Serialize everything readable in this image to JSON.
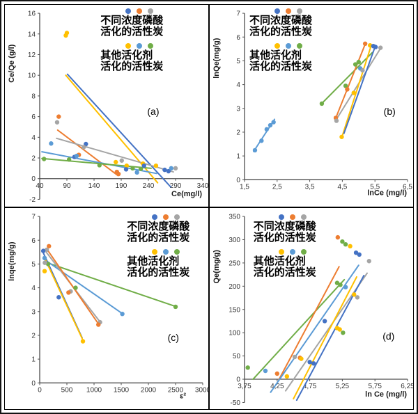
{
  "figure": {
    "description": "2x2 grid of adsorption isotherm scatter plots comparing activated carbons"
  },
  "colors": {
    "blue": "#4472C4",
    "orange": "#ED7D31",
    "gray": "#A5A5A5",
    "yellow": "#FFC000",
    "lightblue": "#5B9BD5",
    "green": "#70AD47"
  },
  "axis_style": {
    "axis_color": "#4d4d4d",
    "tick_text_color": "#333333",
    "label_color": "#1a1a1a"
  },
  "legend": {
    "row1": {
      "dots": [
        "blue",
        "orange",
        "gray"
      ],
      "lines": [
        "不同浓度磷酸",
        "活化的活性炭"
      ]
    },
    "row2": {
      "dots": [
        "yellow",
        "lightblue",
        "green"
      ],
      "lines": [
        "其他活化剂",
        "活化的活性炭"
      ]
    }
  },
  "chart_data": [
    {
      "id": "a",
      "type": "scatter",
      "annotation": "(a)",
      "annotation_pos": [
        0.7,
        0.5
      ],
      "xlabel": "Ce(mg/l)",
      "ylabel": "Ce/Qe (g/l)",
      "xlim": [
        40,
        340
      ],
      "ylim": [
        -2,
        16
      ],
      "grid": false,
      "legend_pos": [
        0.47,
        0.015
      ],
      "xticks": [
        {
          "v": 40,
          "l": "40"
        },
        {
          "v": 90,
          "l": "90"
        },
        {
          "v": 140,
          "l": "140"
        },
        {
          "v": 190,
          "l": "190"
        },
        {
          "v": 240,
          "l": "240"
        },
        {
          "v": 290,
          "l": "290"
        },
        {
          "v": 340,
          "l": "340"
        }
      ],
      "yticks": [
        {
          "v": -2,
          "l": "-2"
        },
        {
          "v": 0,
          "l": "0"
        },
        {
          "v": 2,
          "l": "2"
        },
        {
          "v": 4,
          "l": "4"
        },
        {
          "v": 6,
          "l": "6"
        },
        {
          "v": 8,
          "l": "8"
        },
        {
          "v": 10,
          "l": "10"
        },
        {
          "v": 12,
          "l": "12"
        },
        {
          "v": 14,
          "l": "14"
        },
        {
          "v": 16,
          "l": "16"
        }
      ],
      "series": [
        {
          "color": "yellow",
          "line": [
            [
              88,
              10.0
            ],
            [
              257,
              -0.4
            ]
          ],
          "points": [
            [
              88,
              13.85
            ],
            [
              90,
              14.1
            ],
            [
              180,
              1.6
            ],
            [
              200,
              1.25
            ],
            [
              230,
              1.45
            ],
            [
              254,
              1.25
            ]
          ]
        },
        {
          "color": "blue",
          "line": [
            [
              91,
              10.1
            ],
            [
              281,
              -0.8
            ]
          ],
          "points": [
            [
              125,
              3.35
            ],
            [
              104,
              2.1
            ],
            [
              199,
              0.9
            ],
            [
              232,
              1.25
            ],
            [
              270,
              0.85
            ],
            [
              277,
              0.72
            ]
          ]
        },
        {
          "color": "orange",
          "line": [
            [
              73,
              4.7
            ],
            [
              184,
              0.3
            ]
          ],
          "points": [
            [
              75,
              6.0
            ],
            [
              112,
              2.3
            ],
            [
              182,
              0.65
            ],
            [
              185,
              0.45
            ]
          ]
        },
        {
          "color": "gray",
          "line": [
            [
              71,
              3.9
            ],
            [
              286,
              0.65
            ]
          ],
          "points": [
            [
              72,
              5.45
            ],
            [
              121,
              3.05
            ],
            [
              191,
              1.75
            ],
            [
              290,
              1.0
            ]
          ]
        },
        {
          "color": "lightblue",
          "line": [
            [
              44,
              2.6
            ],
            [
              255,
              0.5
            ]
          ],
          "points": [
            [
              61,
              3.4
            ],
            [
              108,
              2.2
            ],
            [
              219,
              0.6
            ],
            [
              282,
              1.0
            ]
          ]
        },
        {
          "color": "green",
          "line": [
            [
              44,
              1.95
            ],
            [
              245,
              1.0
            ]
          ],
          "points": [
            [
              48,
              1.9
            ],
            [
              94,
              1.85
            ],
            [
              150,
              1.3
            ],
            [
              211,
              1.0
            ],
            [
              226,
              0.95
            ]
          ]
        }
      ]
    },
    {
      "id": "b",
      "type": "scatter",
      "annotation": "(b)",
      "annotation_pos": [
        0.855,
        0.5
      ],
      "xlabel": "lnCe (mg/l)",
      "ylabel": "lnQe(mg/g)",
      "xlim": [
        1.5,
        6.5
      ],
      "ylim": [
        0,
        7
      ],
      "grid": false,
      "legend_pos": [
        0.195,
        0.015
      ],
      "xticks": [
        {
          "v": 1.5,
          "l": "1,5"
        },
        {
          "v": 2.5,
          "l": "2,5"
        },
        {
          "v": 3.5,
          "l": "3,5"
        },
        {
          "v": 4.5,
          "l": "4,5"
        },
        {
          "v": 5.5,
          "l": "5,5"
        },
        {
          "v": 6.5,
          "l": "6,5"
        }
      ],
      "yticks": [
        {
          "v": 0,
          "l": "0"
        },
        {
          "v": 1,
          "l": "1"
        },
        {
          "v": 2,
          "l": "2"
        },
        {
          "v": 3,
          "l": "3"
        },
        {
          "v": 4,
          "l": "4"
        },
        {
          "v": 5,
          "l": "5"
        },
        {
          "v": 6,
          "l": "6"
        },
        {
          "v": 7,
          "l": "7"
        }
      ],
      "series": [
        {
          "color": "lightblue",
          "line": [
            [
              1.78,
              1.19
            ],
            [
              2.42,
              2.54
            ]
          ],
          "points": [
            [
              1.82,
              1.24
            ],
            [
              2.02,
              1.64
            ],
            [
              2.18,
              2.12
            ],
            [
              2.29,
              2.29
            ],
            [
              2.39,
              2.42
            ],
            [
              5.05,
              4.68
            ]
          ]
        },
        {
          "color": "green",
          "line": [
            [
              3.85,
              3.18
            ],
            [
              5.42,
              5.35
            ]
          ],
          "points": [
            [
              3.87,
              3.2
            ],
            [
              4.6,
              3.95
            ],
            [
              4.9,
              4.85
            ],
            [
              5.0,
              4.95
            ]
          ]
        },
        {
          "color": "orange",
          "line": [
            [
              4.3,
              2.6
            ],
            [
              5.2,
              5.7
            ]
          ],
          "points": [
            [
              4.3,
              2.6
            ],
            [
              4.65,
              3.8
            ],
            [
              5.2,
              5.72
            ]
          ]
        },
        {
          "color": "gray",
          "line": [
            [
              4.3,
              2.5
            ],
            [
              5.67,
              5.52
            ]
          ],
          "points": [
            [
              4.32,
              2.48
            ],
            [
              5.12,
              4.6
            ],
            [
              5.67,
              5.55
            ]
          ]
        },
        {
          "color": "yellow",
          "line": [
            [
              4.5,
              1.85
            ],
            [
              5.38,
              5.62
            ]
          ],
          "points": [
            [
              4.48,
              1.8
            ],
            [
              4.85,
              3.65
            ],
            [
              5.35,
              5.65
            ]
          ]
        },
        {
          "color": "blue",
          "line": [
            [
              4.55,
              1.95
            ],
            [
              5.52,
              5.65
            ]
          ],
          "points": [
            [
              5.45,
              5.62
            ],
            [
              5.52,
              5.58
            ]
          ]
        }
      ]
    },
    {
      "id": "c",
      "type": "scatter",
      "annotation": "(c)",
      "annotation_pos": [
        0.8,
        0.615
      ],
      "xlabel": "ε²",
      "ylabel": "lnqe(mg/g)",
      "xlim": [
        0,
        3000
      ],
      "ylim": [
        0,
        7
      ],
      "grid": false,
      "legend_pos": [
        0.6,
        0.03
      ],
      "xticks": [
        {
          "v": 0,
          "l": "0"
        },
        {
          "v": 500,
          "l": "500"
        },
        {
          "v": 1000,
          "l": "1000"
        },
        {
          "v": 1500,
          "l": "1500"
        },
        {
          "v": 2000,
          "l": "2000"
        },
        {
          "v": 2500,
          "l": "2500"
        },
        {
          "v": 3000,
          "l": "3000"
        }
      ],
      "yticks": [
        {
          "v": 0,
          "l": "0"
        },
        {
          "v": 1,
          "l": "1"
        },
        {
          "v": 2,
          "l": "2"
        },
        {
          "v": 3,
          "l": "3"
        },
        {
          "v": 4,
          "l": "4"
        },
        {
          "v": 5,
          "l": "5"
        },
        {
          "v": 6,
          "l": "6"
        },
        {
          "v": 7,
          "l": "7"
        }
      ],
      "series": [
        {
          "color": "green",
          "line": [
            [
              140,
              5.05
            ],
            [
              2520,
              3.2
            ]
          ],
          "points": [
            [
              155,
              5.0
            ],
            [
              660,
              4.0
            ],
            [
              2500,
              3.2
            ]
          ]
        },
        {
          "color": "lightblue",
          "line": [
            [
              80,
              5.2
            ],
            [
              1530,
              2.9
            ]
          ],
          "points": [
            [
              90,
              5.25
            ],
            [
              1520,
              2.9
            ]
          ]
        },
        {
          "color": "gray",
          "line": [
            [
              120,
              5.5
            ],
            [
              1115,
              2.55
            ]
          ],
          "points": [
            [
              130,
              5.6
            ],
            [
              95,
              5.05
            ],
            [
              570,
              3.85
            ],
            [
              1110,
              2.55
            ]
          ]
        },
        {
          "color": "orange",
          "line": [
            [
              140,
              5.6
            ],
            [
              1090,
              2.45
            ]
          ],
          "points": [
            [
              170,
              5.75
            ],
            [
              530,
              3.8
            ],
            [
              1080,
              2.45
            ]
          ]
        },
        {
          "color": "blue",
          "line": [
            [
              60,
              5.5
            ],
            [
              780,
              1.9
            ]
          ],
          "points": [
            [
              66,
              5.55
            ],
            [
              350,
              3.6
            ]
          ]
        },
        {
          "color": "yellow",
          "line": [
            [
              80,
              5.3
            ],
            [
              815,
              1.7
            ]
          ],
          "points": [
            [
              90,
              4.7
            ],
            [
              795,
              1.75
            ]
          ]
        }
      ]
    },
    {
      "id": "d",
      "type": "scatter",
      "annotation": "(d)",
      "annotation_pos": [
        0.85,
        0.61
      ],
      "xlabel": "ln Ce (mg/l)",
      "ylabel": "Qe(mg/g)",
      "xlim": [
        3.75,
        6.25
      ],
      "ylim": [
        -50,
        350
      ],
      "grid": false,
      "legend_pos": [
        0.215,
        0.03
      ],
      "xticks": [
        {
          "v": 3.75,
          "l": "3,75"
        },
        {
          "v": 4.25,
          "l": "4,25"
        },
        {
          "v": 4.75,
          "l": "4,75"
        },
        {
          "v": 5.25,
          "l": "5,25"
        },
        {
          "v": 5.75,
          "l": "5,75"
        },
        {
          "v": 6.25,
          "l": "6,25"
        }
      ],
      "yticks": [
        {
          "v": -50,
          "l": "-50"
        },
        {
          "v": 0,
          "l": "0"
        },
        {
          "v": 50,
          "l": "50"
        },
        {
          "v": 100,
          "l": "100"
        },
        {
          "v": 150,
          "l": "150"
        },
        {
          "v": 200,
          "l": "200"
        },
        {
          "v": 250,
          "l": "250"
        },
        {
          "v": 300,
          "l": "300"
        },
        {
          "v": 350,
          "l": "350"
        }
      ],
      "series": [
        {
          "color": "green",
          "line": [
            [
              3.88,
              0
            ],
            [
              5.28,
              214
            ]
          ],
          "points": [
            [
              3.8,
              25
            ],
            [
              5.25,
              296
            ],
            [
              5.3,
              290
            ],
            [
              5.17,
              207
            ],
            [
              5.22,
              203
            ],
            [
              5.26,
              100
            ]
          ]
        },
        {
          "color": "orange",
          "line": [
            [
              4.28,
              0
            ],
            [
              5.2,
              242
            ]
          ],
          "points": [
            [
              4.25,
              12
            ],
            [
              4.6,
              46
            ],
            [
              5.18,
              305
            ]
          ]
        },
        {
          "color": "lightblue",
          "line": [
            [
              4.15,
              -28
            ],
            [
              5.5,
              245
            ]
          ],
          "points": [
            [
              4.07,
              18
            ],
            [
              5.3,
              198
            ]
          ]
        },
        {
          "color": "gray",
          "line": [
            [
              4.38,
              -25
            ],
            [
              5.63,
              228
            ]
          ],
          "points": [
            [
              4.52,
              48
            ],
            [
              5.48,
              176
            ],
            [
              5.66,
              254
            ]
          ]
        },
        {
          "color": "yellow",
          "line": [
            [
              4.5,
              -42
            ],
            [
              5.47,
              220
            ]
          ],
          "points": [
            [
              4.4,
              6
            ],
            [
              4.62,
              44
            ],
            [
              5.17,
              110
            ],
            [
              5.21,
              107
            ],
            [
              5.37,
              286
            ],
            [
              5.43,
              182
            ]
          ]
        },
        {
          "color": "blue",
          "line": [
            [
              4.55,
              -45
            ],
            [
              5.58,
              223
            ]
          ],
          "points": [
            [
              4.75,
              37
            ],
            [
              4.81,
              34
            ],
            [
              4.98,
              125
            ],
            [
              5.46,
              272
            ],
            [
              5.51,
              268
            ]
          ]
        }
      ]
    }
  ]
}
